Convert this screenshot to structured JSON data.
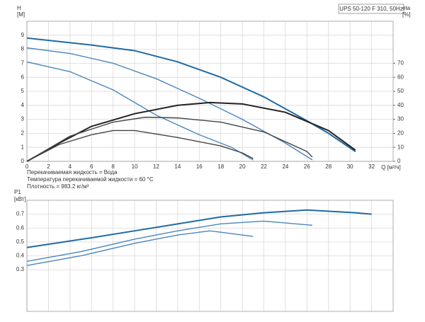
{
  "chart_data": [
    {
      "type": "line",
      "title": "UPS 50-120 F 310, 50Hz",
      "y_label": [
        "H",
        "[M]"
      ],
      "y2_label": [
        "eta",
        "[%]"
      ],
      "x_label": "Q [м³/ч]",
      "notes": [
        "Перекачиваемая жидкость = Вода",
        "Температура перекачиваемой жидкости = 60 °C",
        "Плотность = 983.2 кг/м³"
      ],
      "xlim": [
        0,
        34
      ],
      "xticks": [
        0,
        2,
        4,
        6,
        8,
        10,
        12,
        14,
        16,
        18,
        20,
        22,
        24,
        26,
        28,
        30,
        32
      ],
      "ylim": [
        0,
        10
      ],
      "yticks": [
        0,
        1,
        2,
        3,
        4,
        5,
        6,
        7,
        8,
        9
      ],
      "y2lim": [
        0,
        100
      ],
      "y2ticks": [
        0,
        10,
        20,
        30,
        40,
        50,
        60,
        70
      ],
      "grid": true,
      "series": [
        {
          "color": "#1f6aa5",
          "x": [
            0,
            6,
            10,
            14,
            18,
            22,
            26,
            28,
            30.5
          ],
          "values": [
            8.8,
            8.3,
            7.9,
            7.1,
            6.0,
            4.6,
            2.9,
            2.0,
            0.7
          ]
        },
        {
          "color": "#4a86bd",
          "x": [
            0,
            4,
            8,
            12,
            16,
            20,
            24,
            26.5
          ],
          "values": [
            8.1,
            7.7,
            7.0,
            5.9,
            4.5,
            3.0,
            1.3,
            0.1
          ]
        },
        {
          "color": "#4a86bd",
          "x": [
            0,
            4,
            8,
            12,
            16,
            19,
            21
          ],
          "values": [
            7.1,
            6.4,
            5.1,
            3.3,
            1.9,
            1.0,
            0.1
          ]
        },
        {
          "color": "#222222",
          "axis": "y2",
          "x": [
            0,
            3,
            6,
            10,
            14,
            17,
            20,
            24,
            28,
            30.5
          ],
          "values": [
            0,
            13,
            25,
            34,
            40,
            42,
            41,
            35,
            22,
            8
          ]
        },
        {
          "color": "#444444",
          "axis": "y2",
          "x": [
            0,
            4,
            8,
            11,
            14,
            18,
            22,
            26,
            26.5
          ],
          "values": [
            0,
            18,
            28,
            31.5,
            31,
            28,
            21,
            7,
            3
          ]
        },
        {
          "color": "#444444",
          "axis": "y2",
          "x": [
            0,
            3,
            6,
            8,
            10,
            14,
            18,
            20,
            21
          ],
          "values": [
            0,
            12,
            19,
            22,
            22,
            17,
            11,
            6,
            2
          ]
        }
      ]
    },
    {
      "type": "line",
      "y_label": [
        "P1",
        "[кВт]"
      ],
      "xlim": [
        0,
        34
      ],
      "ylim": [
        0,
        0.8
      ],
      "yticks": [
        0.3,
        0.4,
        0.5,
        0.6,
        0.7
      ],
      "grid": true,
      "series": [
        {
          "color": "#1f6aa5",
          "x": [
            0,
            6,
            10,
            14,
            18,
            22,
            26,
            30.5,
            32
          ],
          "values": [
            0.46,
            0.53,
            0.58,
            0.63,
            0.68,
            0.71,
            0.73,
            0.71,
            0.7
          ]
        },
        {
          "color": "#4a86bd",
          "x": [
            0,
            5,
            10,
            14,
            18,
            22,
            26.5
          ],
          "values": [
            0.36,
            0.43,
            0.52,
            0.58,
            0.63,
            0.65,
            0.62
          ]
        },
        {
          "color": "#4a86bd",
          "x": [
            0,
            5,
            10,
            14,
            17,
            21
          ],
          "values": [
            0.33,
            0.4,
            0.49,
            0.55,
            0.58,
            0.54
          ]
        }
      ]
    }
  ]
}
